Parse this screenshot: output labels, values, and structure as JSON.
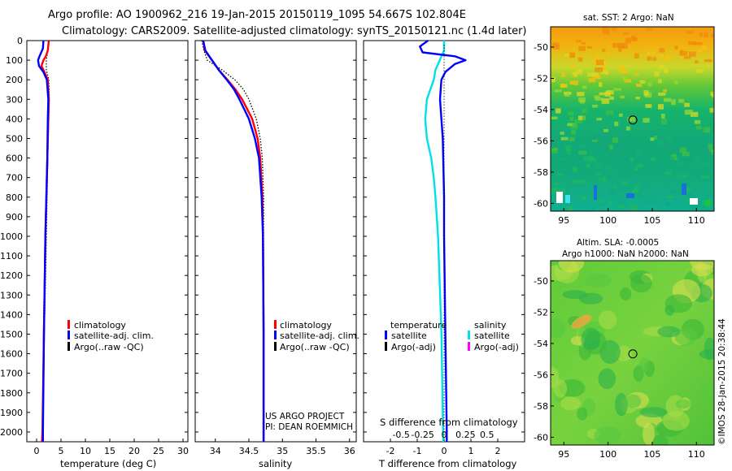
{
  "header": {
    "line1": "Argo profile: AO 1900962_216 19-Jan-2015 20150119_1095 54.667S 102.804E",
    "line2": "Climatology: CARS2009. Satellite-adjusted climatology: synTS_20150121.nc (1.4d later)"
  },
  "colors": {
    "climatology": "#ff0000",
    "satellite": "#0000ff",
    "argo": "#000000",
    "salinity_satellite": "#00e0e8",
    "salinity_argo": "#ff00ff"
  },
  "depth_ticks": [
    "0",
    "100",
    "200",
    "300",
    "400",
    "500",
    "600",
    "700",
    "800",
    "900",
    "1000",
    "1100",
    "1200",
    "1300",
    "1400",
    "1500",
    "1600",
    "1700",
    "1800",
    "1900",
    "2000"
  ],
  "chart_data": [
    {
      "type": "line",
      "name": "temperature",
      "xlabel": "temperature (deg C)",
      "ylabel": "",
      "xlim": [
        -2,
        31
      ],
      "ylim": [
        2050,
        0
      ],
      "x_ticks": [
        "0",
        "5",
        "10",
        "15",
        "20",
        "25",
        "30"
      ],
      "x_tick_values": [
        0,
        5,
        10,
        15,
        20,
        25,
        30
      ],
      "legend": [
        "climatology",
        "satellite-adj. clim.",
        "Argo(..raw -QC)"
      ],
      "series": [
        {
          "name": "climatology",
          "depth": [
            0,
            50,
            80,
            100,
            130,
            160,
            200,
            300,
            400,
            600,
            800,
            1000,
            1500,
            2000,
            2050
          ],
          "values": [
            2.5,
            2.3,
            1.9,
            1.4,
            1.0,
            1.6,
            2.3,
            2.5,
            2.4,
            2.2,
            2.0,
            1.8,
            1.5,
            1.2,
            1.1
          ]
        },
        {
          "name": "satellite-adj. clim.",
          "depth": [
            0,
            40,
            80,
            100,
            130,
            160,
            200,
            300,
            400,
            600,
            800,
            1000,
            1500,
            2000,
            2050
          ],
          "values": [
            1.4,
            1.3,
            0.6,
            0.3,
            0.5,
            1.4,
            2.1,
            2.4,
            2.3,
            2.2,
            2.0,
            1.8,
            1.5,
            1.3,
            1.3
          ]
        },
        {
          "name": "Argo(..raw -QC)",
          "depth": [
            0,
            50,
            100,
            150,
            200,
            300,
            400,
            600,
            1000,
            1500,
            2000
          ],
          "values": [
            2.4,
            2.3,
            2.0,
            2.0,
            2.5,
            2.6,
            2.5,
            2.3,
            2.0,
            1.6,
            1.3
          ]
        }
      ]
    },
    {
      "type": "line",
      "name": "salinity",
      "xlabel": "salinity",
      "ylabel": "",
      "xlim": [
        33.7,
        36.1
      ],
      "ylim": [
        2050,
        0
      ],
      "x_ticks": [
        "34",
        "34.5",
        "35",
        "35.5",
        "36"
      ],
      "x_tick_values": [
        34,
        34.5,
        35,
        35.5,
        36
      ],
      "legend": [
        "climatology",
        "satellite-adj. clim.",
        "Argo(..raw -QC)"
      ],
      "annotation": [
        "US ARGO PROJECT",
        "PI: DEAN ROEMMICH"
      ],
      "series": [
        {
          "name": "climatology",
          "depth": [
            0,
            50,
            100,
            150,
            200,
            250,
            300,
            400,
            500,
            600,
            800,
            1000,
            1500,
            2050
          ],
          "values": [
            33.82,
            33.84,
            33.95,
            34.05,
            34.18,
            34.3,
            34.4,
            34.55,
            34.63,
            34.67,
            34.7,
            34.71,
            34.72,
            34.72
          ]
        },
        {
          "name": "satellite-adj. clim.",
          "depth": [
            0,
            50,
            100,
            150,
            200,
            250,
            300,
            400,
            500,
            600,
            800,
            1000,
            1500,
            2050
          ],
          "values": [
            33.82,
            33.85,
            33.95,
            34.05,
            34.17,
            34.28,
            34.36,
            34.5,
            34.59,
            34.65,
            34.69,
            34.71,
            34.72,
            34.72
          ]
        },
        {
          "name": "Argo(..raw -QC)",
          "depth": [
            0,
            50,
            100,
            150,
            200,
            250,
            300,
            400,
            500,
            600,
            800,
            1000,
            1500,
            2050
          ],
          "values": [
            33.8,
            33.83,
            33.88,
            34.1,
            34.29,
            34.42,
            34.5,
            34.61,
            34.67,
            34.7,
            34.72,
            34.72,
            34.72,
            34.72
          ]
        }
      ]
    },
    {
      "type": "line",
      "name": "difference",
      "xlabel": "T difference from climatology",
      "top_axis_label": "S difference from climatology",
      "ylabel": "",
      "xlim": [
        -3,
        3
      ],
      "ylim": [
        2050,
        0
      ],
      "x_ticks": [
        "-2",
        "-1",
        "0",
        "1",
        "2"
      ],
      "x_tick_values": [
        -2,
        -1,
        0,
        1,
        2
      ],
      "s_ticks": [
        "-0.5",
        "-0.25",
        "0",
        "0.25",
        "0.5"
      ],
      "s_tick_values": [
        -0.5,
        -0.25,
        0,
        0.25,
        0.5
      ],
      "legend_headers": [
        "temperature",
        "salinity"
      ],
      "legend": [
        "satellite",
        "Argo(-adj)",
        "satellite",
        "Argo(-adj)"
      ],
      "series": [
        {
          "name": "temperature satellite",
          "depth": [
            0,
            30,
            60,
            80,
            100,
            120,
            160,
            200,
            300,
            500,
            800,
            1000,
            1500,
            2000,
            2050
          ],
          "values": [
            -0.6,
            -0.9,
            -0.8,
            0.4,
            0.8,
            0.4,
            0.05,
            -0.1,
            -0.15,
            -0.05,
            0.0,
            0.0,
            0.05,
            0.1,
            0.1
          ]
        },
        {
          "name": "salinity satellite",
          "depth": [
            0,
            50,
            100,
            150,
            200,
            300,
            400,
            500,
            600,
            700,
            800,
            1000,
            1500,
            2050
          ],
          "values": [
            0.0,
            0.0,
            -0.05,
            -0.1,
            -0.12,
            -0.2,
            -0.22,
            -0.2,
            -0.15,
            -0.12,
            -0.1,
            -0.07,
            -0.03,
            -0.01
          ]
        }
      ]
    },
    {
      "type": "heatmap",
      "name": "sst_map",
      "title": "sat. SST: 2 Argo: NaN",
      "xlim": [
        93.5,
        112
      ],
      "ylim": [
        -60.5,
        -48.7
      ],
      "x_ticks": [
        "95",
        "100",
        "105",
        "110"
      ],
      "y_ticks": [
        "-50",
        "-52",
        "-54",
        "-56",
        "-58",
        "-60"
      ],
      "argo_position": {
        "lon": 102.804,
        "lat": -54.667
      }
    },
    {
      "type": "heatmap",
      "name": "sla_map",
      "title_lines": [
        "Altim. SLA: -0.0005",
        "Argo h1000: NaN h2000: NaN"
      ],
      "side_label": "©IMOS 28-Jan-2015 20:38:44",
      "xlim": [
        93.5,
        112
      ],
      "ylim": [
        -60.5,
        -48.7
      ],
      "x_ticks": [
        "95",
        "100",
        "105",
        "110"
      ],
      "y_ticks": [
        "-50",
        "-52",
        "-54",
        "-56",
        "-58",
        "-60"
      ],
      "argo_position": {
        "lon": 102.804,
        "lat": -54.667
      }
    }
  ]
}
